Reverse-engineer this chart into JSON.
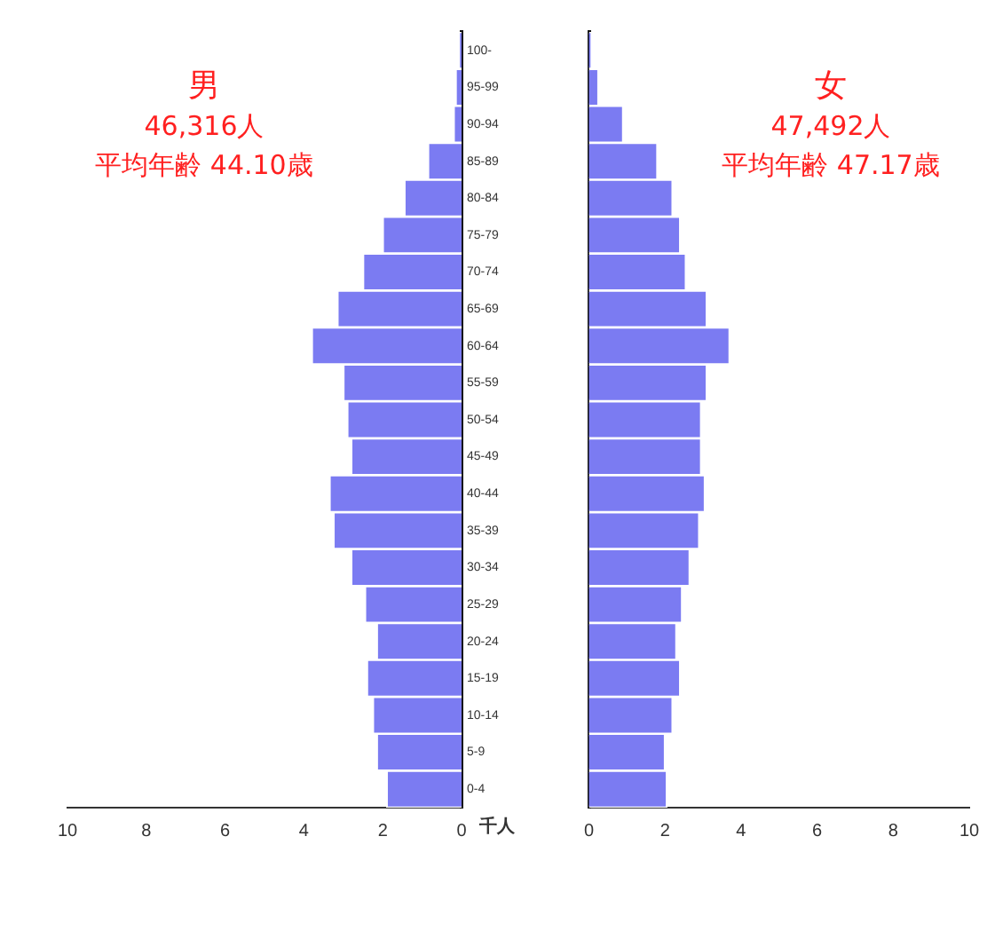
{
  "chart_data": [
    {
      "type": "bar",
      "orientation": "horizontal",
      "title": "男",
      "subtitle": "46,316人",
      "annotations": [
        "平均年齢 44.10歳"
      ],
      "xlabel": "千人",
      "categories": [
        "100-",
        "95-99",
        "90-94",
        "85-89",
        "80-84",
        "75-79",
        "70-74",
        "65-69",
        "60-64",
        "55-59",
        "50-54",
        "45-49",
        "40-44",
        "35-39",
        "30-34",
        "25-29",
        "20-24",
        "15-19",
        "10-14",
        "5-9",
        "0-4"
      ],
      "values": [
        0.05,
        0.15,
        0.2,
        0.85,
        1.45,
        2.0,
        2.5,
        3.15,
        3.8,
        3.0,
        2.9,
        2.8,
        3.35,
        3.25,
        2.8,
        2.45,
        2.15,
        2.4,
        2.25,
        2.15,
        1.9
      ],
      "color": "#7b7bf2",
      "xlim": [
        10,
        0
      ],
      "xticks": [
        10,
        8,
        6,
        4,
        2,
        0
      ],
      "grid": false,
      "legend": false
    },
    {
      "type": "bar",
      "orientation": "horizontal",
      "title": "女",
      "subtitle": "47,492人",
      "annotations": [
        "平均年齢 47.17歳"
      ],
      "categories": [
        null,
        null,
        null,
        null,
        null,
        null,
        null,
        null,
        null,
        null,
        null,
        null,
        null,
        null,
        null,
        null,
        null,
        null,
        null,
        null,
        null
      ],
      "values": [
        0.05,
        0.25,
        0.9,
        1.8,
        2.2,
        2.4,
        2.55,
        3.1,
        3.7,
        3.1,
        2.95,
        2.95,
        3.05,
        2.9,
        2.65,
        2.45,
        2.3,
        2.4,
        2.2,
        2.0,
        2.05
      ],
      "color": "#7b7bf2",
      "xlim": [
        0,
        10
      ],
      "xticks": [
        0,
        2,
        4,
        6,
        8,
        10
      ],
      "tick_labels": "x",
      "grid": false,
      "legend": false
    }
  ]
}
